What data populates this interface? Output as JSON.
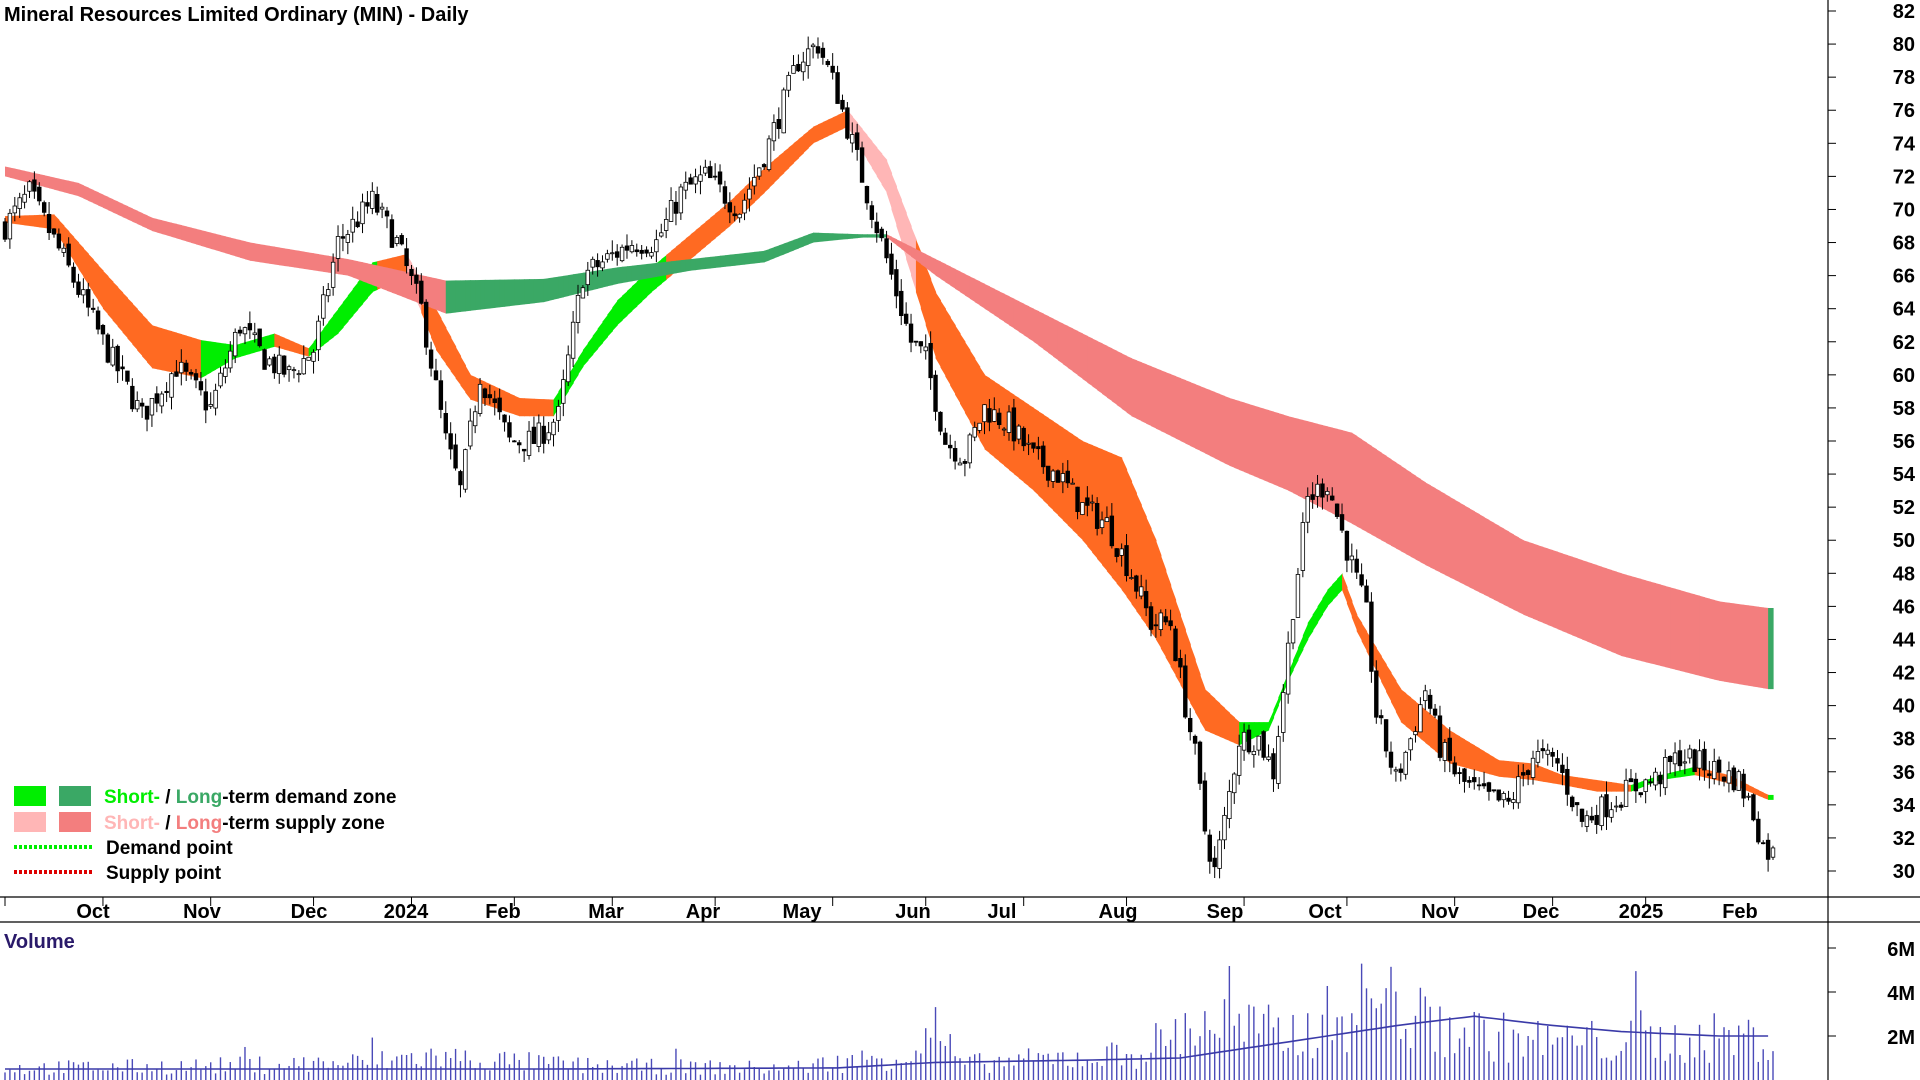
{
  "chart_data": [
    {
      "type": "candlestick",
      "title": "Mineral Resources Limited Ordinary (MIN) - Daily",
      "ylim": [
        29,
        83
      ],
      "y_ticks": [
        "82",
        "80",
        "78",
        "76",
        "74",
        "72",
        "70",
        "68",
        "66",
        "64",
        "62",
        "60",
        "58",
        "56",
        "54",
        "52",
        "50",
        "48",
        "46",
        "44",
        "42",
        "40",
        "38",
        "36",
        "34",
        "32",
        "30"
      ],
      "x_tick_labels": [
        "Oct",
        "Nov",
        "Dec",
        "2024",
        "Feb",
        "Mar",
        "Apr",
        "May",
        "Jun",
        "Jul",
        "Aug",
        "Sep",
        "Oct",
        "Nov",
        "Dec",
        "2025",
        "Feb"
      ],
      "price_path": [
        [
          0,
          69
        ],
        [
          5,
          71
        ],
        [
          12,
          67
        ],
        [
          20,
          62
        ],
        [
          28,
          57.5
        ],
        [
          35,
          60.5
        ],
        [
          42,
          58
        ],
        [
          48,
          63
        ],
        [
          53,
          61
        ],
        [
          58,
          60
        ],
        [
          63,
          61.5
        ],
        [
          68,
          68
        ],
        [
          75,
          70.5
        ],
        [
          80,
          68
        ],
        [
          85,
          64
        ],
        [
          90,
          56
        ],
        [
          93,
          53
        ],
        [
          97,
          60
        ],
        [
          103,
          56
        ],
        [
          108,
          56
        ],
        [
          113,
          57.5
        ],
        [
          118,
          66
        ],
        [
          123,
          67
        ],
        [
          128,
          68
        ],
        [
          133,
          68
        ],
        [
          138,
          71
        ],
        [
          143,
          72
        ],
        [
          150,
          70
        ],
        [
          156,
          74
        ],
        [
          162,
          79
        ],
        [
          166,
          80
        ],
        [
          170,
          77
        ],
        [
          175,
          72
        ],
        [
          180,
          67
        ],
        [
          185,
          62
        ],
        [
          188,
          61
        ],
        [
          192,
          56
        ],
        [
          196,
          55
        ],
        [
          200,
          58
        ],
        [
          205,
          57
        ],
        [
          210,
          55
        ],
        [
          215,
          54
        ],
        [
          220,
          52
        ],
        [
          225,
          51
        ],
        [
          230,
          48
        ],
        [
          234,
          45
        ],
        [
          238,
          45
        ],
        [
          241,
          40
        ],
        [
          243,
          37
        ],
        [
          245,
          32.5
        ],
        [
          247,
          30
        ],
        [
          249,
          33
        ],
        [
          252,
          38
        ],
        [
          256,
          38
        ],
        [
          259,
          36
        ],
        [
          263,
          46
        ],
        [
          266,
          52.5
        ],
        [
          270,
          53.5
        ],
        [
          273,
          50.5
        ],
        [
          276,
          47.5
        ],
        [
          278,
          45.5
        ],
        [
          280,
          39.5
        ],
        [
          284,
          35.5
        ],
        [
          287,
          38
        ],
        [
          290,
          41
        ],
        [
          293,
          37.5
        ],
        [
          297,
          35.5
        ],
        [
          302,
          34.5
        ],
        [
          307,
          34
        ],
        [
          312,
          37
        ],
        [
          317,
          36.5
        ],
        [
          322,
          33
        ],
        [
          327,
          34
        ],
        [
          332,
          35
        ],
        [
          337,
          35.5
        ],
        [
          342,
          37
        ],
        [
          346,
          36.5
        ],
        [
          350,
          36
        ],
        [
          354,
          35.5
        ],
        [
          357,
          33.5
        ],
        [
          359,
          31.5
        ],
        [
          361,
          31
        ]
      ],
      "short_term_band": {
        "colors": {
          "demand": "#00ee00",
          "supply": "#ffb6b6",
          "transition": "#ff6a22"
        },
        "upper": [
          [
            0,
            69.6
          ],
          [
            10,
            69.7
          ],
          [
            20,
            66.3
          ],
          [
            30,
            63
          ],
          [
            40,
            62.1
          ],
          [
            47,
            61.8
          ],
          [
            55,
            62.5
          ],
          [
            62,
            61.6
          ],
          [
            68,
            64
          ],
          [
            75,
            66.8
          ],
          [
            82,
            67.3
          ],
          [
            88,
            64
          ],
          [
            95,
            60
          ],
          [
            105,
            58.6
          ],
          [
            112,
            58.5
          ],
          [
            118,
            61.5
          ],
          [
            125,
            64.5
          ],
          [
            132,
            66.5
          ],
          [
            140,
            68.5
          ],
          [
            148,
            70.5
          ],
          [
            155,
            72.5
          ],
          [
            165,
            75
          ],
          [
            172,
            76
          ],
          [
            180,
            73
          ],
          [
            190,
            65
          ],
          [
            200,
            60
          ],
          [
            210,
            58
          ],
          [
            220,
            56
          ],
          [
            228,
            55
          ],
          [
            235,
            50
          ],
          [
            245,
            41
          ],
          [
            252,
            39
          ],
          [
            258,
            39
          ],
          [
            262,
            42
          ],
          [
            266,
            45
          ],
          [
            270,
            47
          ],
          [
            273,
            48
          ],
          [
            276,
            45.5
          ],
          [
            285,
            41
          ],
          [
            295,
            38.5
          ],
          [
            305,
            36.7
          ],
          [
            312,
            36.5
          ],
          [
            318,
            35.8
          ],
          [
            325,
            35.5
          ],
          [
            332,
            35.2
          ],
          [
            338,
            35.8
          ],
          [
            345,
            36.3
          ],
          [
            352,
            35.8
          ],
          [
            360,
            34.6
          ]
        ],
        "lower": [
          [
            0,
            69.2
          ],
          [
            10,
            68.8
          ],
          [
            20,
            64
          ],
          [
            30,
            60.4
          ],
          [
            40,
            59.8
          ],
          [
            47,
            61
          ],
          [
            55,
            61.7
          ],
          [
            62,
            61.1
          ],
          [
            68,
            62.5
          ],
          [
            75,
            65
          ],
          [
            82,
            66
          ],
          [
            88,
            61.5
          ],
          [
            95,
            58.5
          ],
          [
            105,
            57.5
          ],
          [
            112,
            57.5
          ],
          [
            118,
            60.5
          ],
          [
            125,
            63
          ],
          [
            132,
            65
          ],
          [
            140,
            67
          ],
          [
            148,
            69
          ],
          [
            155,
            71
          ],
          [
            165,
            74
          ],
          [
            172,
            75
          ],
          [
            180,
            71
          ],
          [
            190,
            61
          ],
          [
            200,
            55.5
          ],
          [
            210,
            53
          ],
          [
            220,
            50
          ],
          [
            228,
            47
          ],
          [
            235,
            44
          ],
          [
            245,
            38.5
          ],
          [
            252,
            37.6
          ],
          [
            258,
            38.5
          ],
          [
            262,
            41.5
          ],
          [
            266,
            44
          ],
          [
            270,
            46
          ],
          [
            273,
            47
          ],
          [
            276,
            44.5
          ],
          [
            285,
            39
          ],
          [
            295,
            36.5
          ],
          [
            305,
            35.7
          ],
          [
            312,
            35.5
          ],
          [
            318,
            35.2
          ],
          [
            325,
            34.8
          ],
          [
            332,
            34.8
          ],
          [
            338,
            35.5
          ],
          [
            345,
            35.8
          ],
          [
            352,
            35.3
          ],
          [
            360,
            34.3
          ]
        ],
        "type": "band"
      },
      "long_term_band": {
        "colors": {
          "demand": "#3aa865",
          "supply": "#f37e7e",
          "transition": "#ff6a22"
        },
        "upper": [
          [
            0,
            72.6
          ],
          [
            15,
            71.6
          ],
          [
            30,
            69.5
          ],
          [
            50,
            68
          ],
          [
            70,
            67
          ],
          [
            90,
            65.7
          ],
          [
            110,
            65.8
          ],
          [
            125,
            66.5
          ],
          [
            140,
            67
          ],
          [
            155,
            67.5
          ],
          [
            165,
            68.6
          ],
          [
            175,
            68.5
          ],
          [
            180,
            68.5
          ],
          [
            190,
            67
          ],
          [
            210,
            64
          ],
          [
            230,
            61
          ],
          [
            250,
            58.6
          ],
          [
            262,
            57.5
          ],
          [
            275,
            56.5
          ],
          [
            290,
            53.5
          ],
          [
            310,
            50
          ],
          [
            330,
            48
          ],
          [
            350,
            46.3
          ],
          [
            360,
            45.9
          ]
        ],
        "lower": [
          [
            0,
            72
          ],
          [
            15,
            70.8
          ],
          [
            30,
            68.7
          ],
          [
            50,
            66.9
          ],
          [
            70,
            66
          ],
          [
            90,
            63.7
          ],
          [
            110,
            64.4
          ],
          [
            125,
            65.5
          ],
          [
            140,
            66.3
          ],
          [
            155,
            66.8
          ],
          [
            165,
            68
          ],
          [
            175,
            68.3
          ],
          [
            180,
            68.3
          ],
          [
            190,
            66
          ],
          [
            210,
            62
          ],
          [
            230,
            57.5
          ],
          [
            250,
            54.5
          ],
          [
            262,
            53
          ],
          [
            275,
            51
          ],
          [
            290,
            48.5
          ],
          [
            310,
            45.5
          ],
          [
            330,
            43
          ],
          [
            350,
            41.5
          ],
          [
            360,
            41
          ]
        ],
        "type": "band"
      },
      "legend": [
        {
          "swatch1": "#00ee00",
          "swatch2": "#3aa865",
          "part1": "Short-",
          "sep": " / ",
          "part2": "Long",
          "rest": "-term demand zone",
          "part1_color": "#00ee00",
          "part2_color": "#3aa865"
        },
        {
          "swatch1": "#ffb6b6",
          "swatch2": "#f37e7e",
          "part1": "Short-",
          "sep": " / ",
          "part2": "Long",
          "rest": "-term supply zone",
          "part1_color": "#ffb6b6",
          "part2_color": "#f37e7e"
        },
        {
          "dot_color": "#00ee00",
          "label": "Demand point"
        },
        {
          "dot_color": "#dd0000",
          "label": "Supply point"
        }
      ]
    },
    {
      "type": "bar",
      "title": "Volume",
      "y_ticks": [
        "6M",
        "4M",
        "2M"
      ],
      "ylim": [
        0,
        7000000
      ],
      "bar_color": "#4a4ab8",
      "avg_line_color": "#3a3aa8",
      "volume_path": [
        [
          0,
          0.6
        ],
        [
          40,
          0.7
        ],
        [
          75,
          0.9
        ],
        [
          85,
          1.2
        ],
        [
          120,
          0.7
        ],
        [
          160,
          0.6
        ],
        [
          185,
          1.3
        ],
        [
          190,
          2.6
        ],
        [
          195,
          0.8
        ],
        [
          230,
          1.3
        ],
        [
          245,
          3.0
        ],
        [
          262,
          2.2
        ],
        [
          275,
          3.5
        ],
        [
          280,
          4.4
        ],
        [
          290,
          2.8
        ],
        [
          310,
          2.0
        ],
        [
          330,
          1.9
        ],
        [
          345,
          2.0
        ],
        [
          352,
          2.2
        ],
        [
          360,
          2.0
        ]
      ],
      "avg_path": [
        [
          0,
          0.5
        ],
        [
          60,
          0.5
        ],
        [
          110,
          0.5
        ],
        [
          170,
          0.55
        ],
        [
          190,
          0.8
        ],
        [
          220,
          0.9
        ],
        [
          240,
          1.0
        ],
        [
          255,
          1.5
        ],
        [
          270,
          2.0
        ],
        [
          285,
          2.5
        ],
        [
          300,
          2.9
        ],
        [
          315,
          2.5
        ],
        [
          330,
          2.2
        ],
        [
          350,
          2.0
        ],
        [
          360,
          2.0
        ]
      ]
    }
  ]
}
